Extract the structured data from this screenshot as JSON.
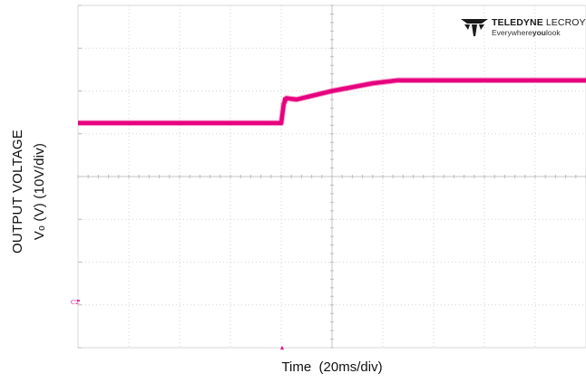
{
  "chart_data": {
    "type": "line",
    "xlabel": "Time  (20ms/div)",
    "ylabel_line1": "OUTPUT VOLTAGE",
    "ylabel_line2": "Vₒ (V) (10V/div)",
    "x_divisions": 10,
    "y_divisions": 8,
    "x_unit": "ms",
    "x_per_div": 20,
    "y_unit": "V",
    "y_per_div": 10,
    "xlim": [
      0,
      200
    ],
    "ylim": [
      -40,
      40
    ],
    "grid": true,
    "channel_marker": "C2",
    "trigger_marker": true,
    "series": [
      {
        "color": "#e6007e",
        "x": [
          0,
          80,
          81,
          82,
          86,
          100,
          116,
          126,
          200
        ],
        "y": [
          12.5,
          12.5,
          17,
          18.3,
          18,
          20,
          21.8,
          22.5,
          22.5
        ]
      }
    ]
  },
  "logo": {
    "brand_bold": "TELEDYNE",
    "brand_light": "LECROY",
    "tagline_pre": "Everywhere",
    "tagline_bold": "you",
    "tagline_post": "look"
  }
}
